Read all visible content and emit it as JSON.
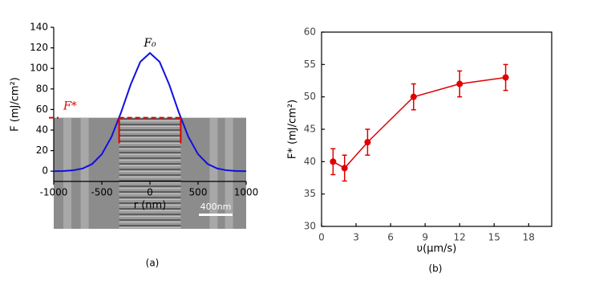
{
  "chart_data": [
    {
      "type": "line",
      "ylabel": "F (mJ/cm²)",
      "xlabel": "r (nm)",
      "x": [
        -1000,
        -900,
        -800,
        -700,
        -600,
        -500,
        -400,
        -300,
        -200,
        -100,
        0,
        100,
        200,
        300,
        400,
        500,
        600,
        700,
        800,
        900,
        1000
      ],
      "series": [
        {
          "name": "F₀",
          "color": "#1010e0",
          "values": [
            0,
            0.2,
            0.8,
            2.6,
            7.0,
            16.5,
            33.3,
            57.2,
            84.3,
            106.4,
            115,
            106.4,
            84.3,
            57.2,
            33.3,
            16.5,
            7.0,
            2.6,
            0.8,
            0.2,
            0
          ]
        }
      ],
      "threshold": {
        "label": "F*",
        "value": 52,
        "x": [
          -320,
          320
        ],
        "color": "#e00000"
      },
      "xlim": [
        -1000,
        1000
      ],
      "xticks": [
        -1000,
        -500,
        0,
        500,
        1000
      ],
      "ylim": [
        -10,
        140
      ],
      "yticks": [
        0,
        20,
        40,
        60,
        80,
        100,
        120,
        140
      ],
      "scale_bar": "400nm",
      "caption": "(a)"
    },
    {
      "type": "line",
      "ylabel": "F* (mJ/cm²)",
      "xlabel": "υ(μm/s)",
      "x": [
        1,
        2,
        4,
        8,
        12,
        16
      ],
      "series": [
        {
          "name": "F*",
          "color": "#e00000",
          "values": [
            40,
            39,
            43,
            50,
            52,
            53
          ],
          "errors": [
            2,
            2,
            2,
            2,
            2,
            2
          ]
        }
      ],
      "xlim": [
        0,
        20
      ],
      "xticks": [
        0,
        3,
        6,
        9,
        12,
        15,
        18
      ],
      "ylim": [
        30,
        60
      ],
      "yticks": [
        30,
        35,
        40,
        45,
        50,
        55,
        60
      ],
      "caption": "(b)"
    }
  ]
}
